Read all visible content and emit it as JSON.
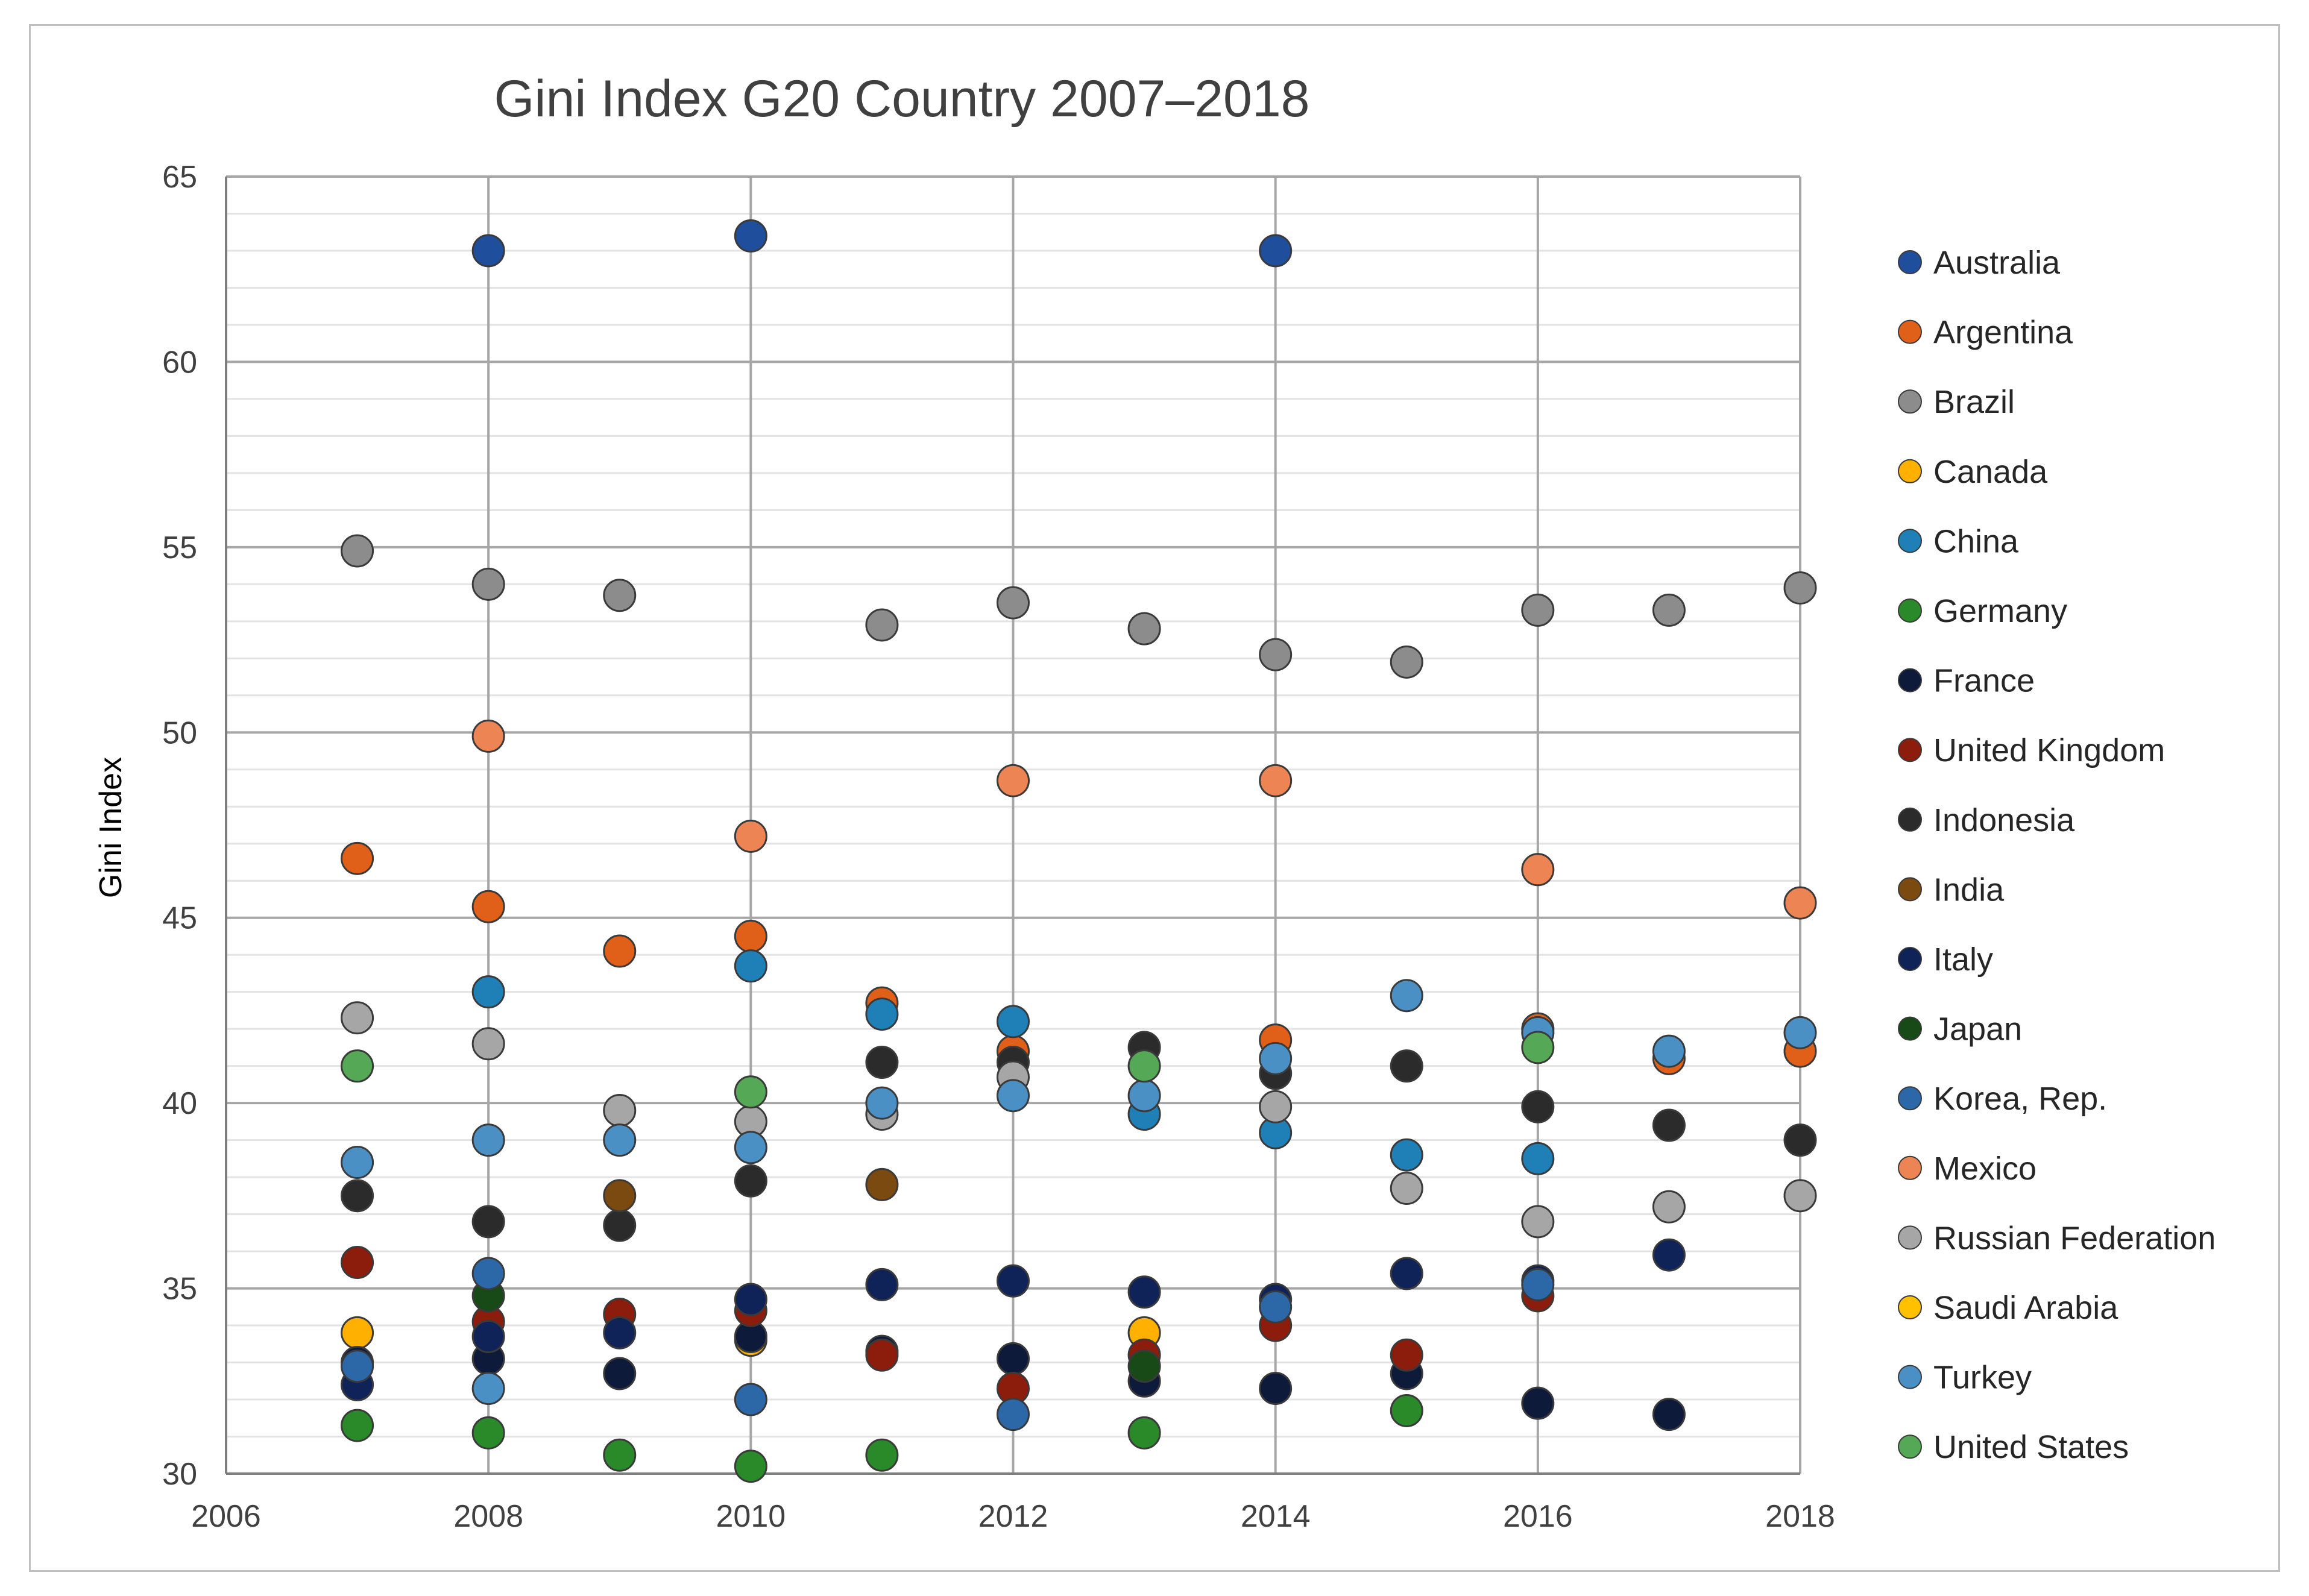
{
  "chart_data": {
    "type": "scatter",
    "title": "Gini Index G20 Country 2007–2018",
    "xlabel": "",
    "ylabel": "Gini Index",
    "xlim": [
      2006,
      2018
    ],
    "ylim": [
      30,
      65
    ],
    "x_ticks": [
      2006,
      2008,
      2010,
      2012,
      2014,
      2016,
      2018
    ],
    "y_ticks": [
      30,
      35,
      40,
      45,
      50,
      55,
      60,
      65
    ],
    "legend_position": "right",
    "series": [
      {
        "name": "Australia",
        "color": "#1f4e9c",
        "points": [
          [
            2008,
            63.0
          ],
          [
            2010,
            63.4
          ],
          [
            2014,
            63.0
          ]
        ]
      },
      {
        "name": "Argentina",
        "color": "#e0601a",
        "points": [
          [
            2007,
            46.6
          ],
          [
            2008,
            45.3
          ],
          [
            2009,
            44.1
          ],
          [
            2010,
            44.5
          ],
          [
            2011,
            42.7
          ],
          [
            2012,
            41.4
          ],
          [
            2014,
            41.7
          ],
          [
            2016,
            42.0
          ],
          [
            2017,
            41.2
          ],
          [
            2018,
            41.4
          ]
        ]
      },
      {
        "name": "Brazil",
        "color": "#8c8c8c",
        "points": [
          [
            2007,
            54.9
          ],
          [
            2008,
            54.0
          ],
          [
            2009,
            53.7
          ],
          [
            2011,
            52.9
          ],
          [
            2012,
            53.5
          ],
          [
            2013,
            52.8
          ],
          [
            2014,
            52.1
          ],
          [
            2015,
            51.9
          ],
          [
            2016,
            53.3
          ],
          [
            2017,
            53.3
          ],
          [
            2018,
            53.9
          ]
        ]
      },
      {
        "name": "Canada",
        "color": "#ffb000",
        "points": [
          [
            2007,
            33.8
          ],
          [
            2010,
            33.6
          ],
          [
            2013,
            33.8
          ]
        ]
      },
      {
        "name": "China",
        "color": "#1f80b8",
        "points": [
          [
            2008,
            43.0
          ],
          [
            2010,
            43.7
          ],
          [
            2011,
            42.4
          ],
          [
            2012,
            42.2
          ],
          [
            2013,
            39.7
          ],
          [
            2014,
            39.2
          ],
          [
            2015,
            38.6
          ],
          [
            2016,
            38.5
          ]
        ]
      },
      {
        "name": "Germany",
        "color": "#2a8a2a",
        "points": [
          [
            2007,
            31.3
          ],
          [
            2008,
            31.1
          ],
          [
            2009,
            30.5
          ],
          [
            2010,
            30.2
          ],
          [
            2011,
            30.5
          ],
          [
            2013,
            31.1
          ],
          [
            2015,
            31.7
          ]
        ]
      },
      {
        "name": "France",
        "color": "#0d1a3a",
        "points": [
          [
            2007,
            33.0
          ],
          [
            2008,
            33.1
          ],
          [
            2009,
            32.7
          ],
          [
            2010,
            33.7
          ],
          [
            2011,
            33.3
          ],
          [
            2012,
            33.1
          ],
          [
            2013,
            32.5
          ],
          [
            2014,
            32.3
          ],
          [
            2015,
            32.7
          ],
          [
            2016,
            31.9
          ],
          [
            2017,
            31.6
          ]
        ]
      },
      {
        "name": "United Kingdom",
        "color": "#8c1c0c",
        "points": [
          [
            2007,
            35.7
          ],
          [
            2008,
            34.1
          ],
          [
            2009,
            34.3
          ],
          [
            2010,
            34.4
          ],
          [
            2011,
            33.2
          ],
          [
            2012,
            32.3
          ],
          [
            2013,
            33.2
          ],
          [
            2014,
            34.0
          ],
          [
            2015,
            33.2
          ],
          [
            2016,
            34.8
          ]
        ]
      },
      {
        "name": "Indonesia",
        "color": "#2b2b2b",
        "points": [
          [
            2007,
            37.5
          ],
          [
            2008,
            36.8
          ],
          [
            2009,
            36.7
          ],
          [
            2010,
            37.9
          ],
          [
            2011,
            41.1
          ],
          [
            2012,
            41.1
          ],
          [
            2013,
            41.5
          ],
          [
            2014,
            40.8
          ],
          [
            2015,
            41.0
          ],
          [
            2016,
            39.9
          ],
          [
            2017,
            39.4
          ],
          [
            2018,
            39.0
          ]
        ]
      },
      {
        "name": "India",
        "color": "#7a4a10",
        "points": [
          [
            2009,
            37.5
          ],
          [
            2011,
            37.8
          ]
        ]
      },
      {
        "name": "Italy",
        "color": "#0f2358",
        "points": [
          [
            2007,
            32.4
          ],
          [
            2008,
            33.7
          ],
          [
            2009,
            33.8
          ],
          [
            2010,
            34.7
          ],
          [
            2011,
            35.1
          ],
          [
            2012,
            35.2
          ],
          [
            2013,
            34.9
          ],
          [
            2014,
            34.7
          ],
          [
            2015,
            35.4
          ],
          [
            2016,
            35.2
          ],
          [
            2017,
            35.9
          ]
        ]
      },
      {
        "name": "Japan",
        "color": "#184a18",
        "points": [
          [
            2008,
            34.8
          ],
          [
            2013,
            32.9
          ]
        ]
      },
      {
        "name": "Korea, Rep.",
        "color": "#2c67a8",
        "points": [
          [
            2007,
            32.9
          ],
          [
            2008,
            35.4
          ],
          [
            2010,
            32.0
          ],
          [
            2012,
            31.6
          ],
          [
            2014,
            34.5
          ],
          [
            2016,
            35.1
          ]
        ]
      },
      {
        "name": "Mexico",
        "color": "#ec8454",
        "points": [
          [
            2008,
            49.9
          ],
          [
            2010,
            47.2
          ],
          [
            2012,
            48.7
          ],
          [
            2014,
            48.7
          ],
          [
            2016,
            46.3
          ],
          [
            2018,
            45.4
          ]
        ]
      },
      {
        "name": "Russian Federation",
        "color": "#a6a6a6",
        "points": [
          [
            2007,
            42.3
          ],
          [
            2008,
            41.6
          ],
          [
            2009,
            39.8
          ],
          [
            2010,
            39.5
          ],
          [
            2011,
            39.7
          ],
          [
            2012,
            40.7
          ],
          [
            2014,
            39.9
          ],
          [
            2015,
            37.7
          ],
          [
            2016,
            36.8
          ],
          [
            2017,
            37.2
          ],
          [
            2018,
            37.5
          ]
        ]
      },
      {
        "name": "Saudi Arabia",
        "color": "#ffc000",
        "points": []
      },
      {
        "name": "Turkey",
        "color": "#4a90c4",
        "points": [
          [
            2007,
            38.4
          ],
          [
            2008,
            39.0
          ],
          [
            2009,
            39.0
          ],
          [
            2010,
            38.8
          ],
          [
            2011,
            40.0
          ],
          [
            2012,
            40.2
          ],
          [
            2013,
            40.2
          ],
          [
            2014,
            41.2
          ],
          [
            2015,
            42.9
          ],
          [
            2016,
            41.9
          ],
          [
            2017,
            41.4
          ],
          [
            2018,
            41.9
          ],
          [
            2008,
            32.3
          ]
        ]
      },
      {
        "name": "United States",
        "color": "#55a855",
        "points": [
          [
            2007,
            41.0
          ],
          [
            2010,
            40.3
          ],
          [
            2013,
            41.0
          ],
          [
            2016,
            41.5
          ]
        ]
      }
    ]
  }
}
